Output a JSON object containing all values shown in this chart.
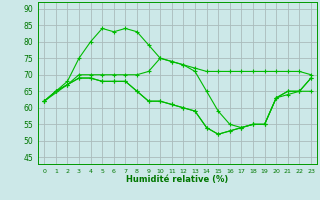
{
  "background_color": "#cce8e8",
  "grid_color": "#aabbbb",
  "line_color": "#00bb00",
  "xlabel": "Humidité relative (%)",
  "yticks": [
    45,
    50,
    55,
    60,
    65,
    70,
    75,
    80,
    85,
    90
  ],
  "xlim": [
    -0.5,
    23.5
  ],
  "ylim": [
    43,
    92
  ],
  "line1_x": [
    0,
    1,
    2,
    3,
    4,
    5,
    6,
    7,
    8,
    9,
    10,
    11,
    12,
    13,
    14,
    15,
    16,
    17,
    18,
    19,
    20,
    21,
    22,
    23
  ],
  "line1_y": [
    62,
    65,
    68,
    75,
    80,
    84,
    83,
    84,
    83,
    79,
    75,
    74,
    73,
    72,
    71,
    71,
    71,
    71,
    71,
    71,
    71,
    71,
    71,
    70
  ],
  "line2_x": [
    0,
    1,
    2,
    3,
    4,
    5,
    6,
    7,
    8,
    9,
    10,
    11,
    12,
    13,
    14,
    15,
    16,
    17,
    18,
    19,
    20,
    21,
    22,
    23
  ],
  "line2_y": [
    62,
    65,
    67,
    70,
    70,
    70,
    70,
    70,
    70,
    71,
    75,
    74,
    73,
    71,
    65,
    59,
    55,
    54,
    55,
    55,
    63,
    64,
    65,
    69
  ],
  "line3_x": [
    0,
    1,
    2,
    3,
    4,
    5,
    6,
    7,
    8,
    9,
    10,
    11,
    12,
    13,
    14,
    15,
    16,
    17,
    18,
    19,
    20,
    21,
    22,
    23
  ],
  "line3_y": [
    62,
    65,
    67,
    69,
    69,
    68,
    68,
    68,
    65,
    62,
    62,
    61,
    60,
    59,
    54,
    52,
    53,
    54,
    55,
    55,
    63,
    65,
    65,
    69
  ],
  "line4_x": [
    0,
    2,
    3,
    4,
    5,
    6,
    7,
    8,
    9,
    10,
    11,
    12,
    13,
    14,
    15,
    16,
    17,
    18,
    19,
    20,
    21,
    22,
    23
  ],
  "line4_y": [
    62,
    67,
    69,
    69,
    68,
    68,
    68,
    65,
    62,
    62,
    61,
    60,
    59,
    54,
    52,
    53,
    54,
    55,
    55,
    63,
    65,
    65,
    65
  ]
}
